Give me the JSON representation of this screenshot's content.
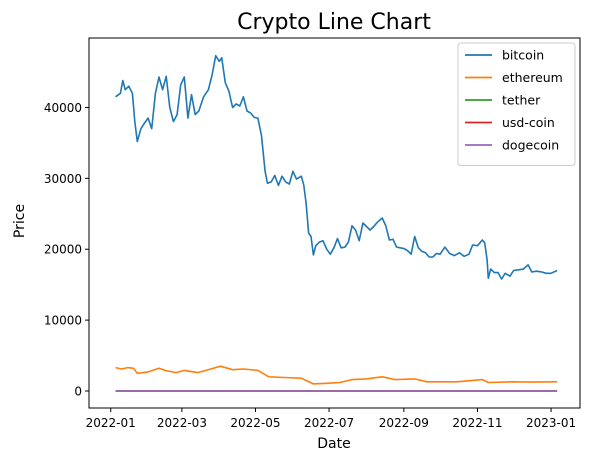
{
  "chart_data": {
    "type": "line",
    "title": "Crypto Line Chart",
    "xlabel": "Date",
    "ylabel": "Price",
    "x_ticks": [
      "2022-01",
      "2022-03",
      "2022-05",
      "2022-07",
      "2022-09",
      "2022-11",
      "2023-01"
    ],
    "y_ticks": [
      0,
      10000,
      20000,
      30000,
      40000
    ],
    "xlim": [
      "2021-12-14",
      "2023-01-25"
    ],
    "ylim": [
      -2400,
      49800
    ],
    "grid": false,
    "legend_position": "top-right",
    "series": [
      {
        "name": "bitcoin",
        "color": "#1f77b4",
        "points": [
          [
            "2022-01-05",
            41500
          ],
          [
            "2022-01-09",
            42000
          ],
          [
            "2022-01-11",
            43800
          ],
          [
            "2022-01-13",
            42500
          ],
          [
            "2022-01-16",
            43000
          ],
          [
            "2022-01-19",
            42000
          ],
          [
            "2022-01-21",
            38000
          ],
          [
            "2022-01-23",
            35200
          ],
          [
            "2022-01-26",
            37000
          ],
          [
            "2022-01-29",
            37800
          ],
          [
            "2022-02-01",
            38500
          ],
          [
            "2022-02-04",
            37000
          ],
          [
            "2022-02-07",
            42000
          ],
          [
            "2022-02-10",
            44300
          ],
          [
            "2022-02-13",
            42500
          ],
          [
            "2022-02-16",
            44400
          ],
          [
            "2022-02-19",
            40000
          ],
          [
            "2022-02-22",
            38000
          ],
          [
            "2022-02-25",
            39000
          ],
          [
            "2022-02-28",
            43200
          ],
          [
            "2022-03-03",
            44300
          ],
          [
            "2022-03-06",
            38500
          ],
          [
            "2022-03-09",
            41800
          ],
          [
            "2022-03-12",
            39000
          ],
          [
            "2022-03-15",
            39500
          ],
          [
            "2022-03-19",
            41500
          ],
          [
            "2022-03-23",
            42500
          ],
          [
            "2022-03-26",
            44600
          ],
          [
            "2022-03-29",
            47300
          ],
          [
            "2022-04-01",
            46500
          ],
          [
            "2022-04-03",
            47000
          ],
          [
            "2022-04-06",
            43500
          ],
          [
            "2022-04-09",
            42300
          ],
          [
            "2022-04-12",
            40000
          ],
          [
            "2022-04-15",
            40500
          ],
          [
            "2022-04-18",
            40200
          ],
          [
            "2022-04-21",
            41500
          ],
          [
            "2022-04-24",
            39500
          ],
          [
            "2022-04-27",
            39200
          ],
          [
            "2022-04-30",
            38600
          ],
          [
            "2022-05-03",
            38500
          ],
          [
            "2022-05-06",
            36000
          ],
          [
            "2022-05-09",
            31000
          ],
          [
            "2022-05-11",
            29300
          ],
          [
            "2022-05-14",
            29500
          ],
          [
            "2022-05-17",
            30400
          ],
          [
            "2022-05-20",
            29000
          ],
          [
            "2022-05-23",
            30300
          ],
          [
            "2022-05-26",
            29500
          ],
          [
            "2022-05-29",
            29200
          ],
          [
            "2022-06-01",
            31000
          ],
          [
            "2022-06-04",
            29900
          ],
          [
            "2022-06-08",
            30300
          ],
          [
            "2022-06-10",
            29100
          ],
          [
            "2022-06-12",
            26500
          ],
          [
            "2022-06-14",
            22300
          ],
          [
            "2022-06-16",
            21800
          ],
          [
            "2022-06-18",
            19200
          ],
          [
            "2022-06-20",
            20500
          ],
          [
            "2022-06-23",
            21000
          ],
          [
            "2022-06-26",
            21200
          ],
          [
            "2022-06-29",
            20000
          ],
          [
            "2022-07-02",
            19300
          ],
          [
            "2022-07-05",
            20200
          ],
          [
            "2022-07-08",
            21500
          ],
          [
            "2022-07-11",
            20200
          ],
          [
            "2022-07-14",
            20300
          ],
          [
            "2022-07-17",
            21000
          ],
          [
            "2022-07-20",
            23300
          ],
          [
            "2022-07-23",
            22700
          ],
          [
            "2022-07-26",
            21200
          ],
          [
            "2022-07-29",
            23700
          ],
          [
            "2022-08-01",
            23200
          ],
          [
            "2022-08-04",
            22700
          ],
          [
            "2022-08-07",
            23200
          ],
          [
            "2022-08-10",
            23800
          ],
          [
            "2022-08-14",
            24400
          ],
          [
            "2022-08-17",
            23300
          ],
          [
            "2022-08-20",
            21300
          ],
          [
            "2022-08-23",
            21400
          ],
          [
            "2022-08-26",
            20300
          ],
          [
            "2022-08-29",
            20200
          ],
          [
            "2022-09-01",
            20100
          ],
          [
            "2022-09-04",
            19800
          ],
          [
            "2022-09-07",
            19300
          ],
          [
            "2022-09-10",
            21800
          ],
          [
            "2022-09-13",
            20200
          ],
          [
            "2022-09-16",
            19700
          ],
          [
            "2022-09-19",
            19500
          ],
          [
            "2022-09-22",
            18900
          ],
          [
            "2022-09-25",
            18900
          ],
          [
            "2022-09-28",
            19400
          ],
          [
            "2022-10-01",
            19300
          ],
          [
            "2022-10-05",
            20300
          ],
          [
            "2022-10-09",
            19400
          ],
          [
            "2022-10-13",
            19100
          ],
          [
            "2022-10-17",
            19500
          ],
          [
            "2022-10-21",
            19000
          ],
          [
            "2022-10-25",
            19300
          ],
          [
            "2022-10-28",
            20600
          ],
          [
            "2022-11-01",
            20500
          ],
          [
            "2022-11-05",
            21300
          ],
          [
            "2022-11-07",
            20900
          ],
          [
            "2022-11-09",
            18500
          ],
          [
            "2022-11-10",
            15900
          ],
          [
            "2022-11-12",
            17200
          ],
          [
            "2022-11-15",
            16700
          ],
          [
            "2022-11-18",
            16700
          ],
          [
            "2022-11-21",
            15800
          ],
          [
            "2022-11-24",
            16600
          ],
          [
            "2022-11-28",
            16200
          ],
          [
            "2022-12-01",
            17000
          ],
          [
            "2022-12-05",
            17100
          ],
          [
            "2022-12-09",
            17200
          ],
          [
            "2022-12-13",
            17800
          ],
          [
            "2022-12-16",
            16800
          ],
          [
            "2022-12-20",
            16900
          ],
          [
            "2022-12-24",
            16800
          ],
          [
            "2022-12-28",
            16600
          ],
          [
            "2023-01-01",
            16600
          ],
          [
            "2023-01-06",
            17000
          ]
        ]
      },
      {
        "name": "ethereum",
        "color": "#ff7f0e",
        "points": [
          [
            "2022-01-05",
            3300
          ],
          [
            "2022-01-10",
            3100
          ],
          [
            "2022-01-15",
            3300
          ],
          [
            "2022-01-20",
            3200
          ],
          [
            "2022-01-23",
            2500
          ],
          [
            "2022-02-01",
            2700
          ],
          [
            "2022-02-10",
            3200
          ],
          [
            "2022-02-15",
            2900
          ],
          [
            "2022-02-24",
            2600
          ],
          [
            "2022-03-03",
            2900
          ],
          [
            "2022-03-14",
            2600
          ],
          [
            "2022-03-25",
            3100
          ],
          [
            "2022-04-02",
            3500
          ],
          [
            "2022-04-12",
            3000
          ],
          [
            "2022-04-21",
            3100
          ],
          [
            "2022-05-03",
            2900
          ],
          [
            "2022-05-12",
            2000
          ],
          [
            "2022-05-25",
            1900
          ],
          [
            "2022-06-08",
            1800
          ],
          [
            "2022-06-18",
            1000
          ],
          [
            "2022-07-01",
            1100
          ],
          [
            "2022-07-10",
            1200
          ],
          [
            "2022-07-20",
            1600
          ],
          [
            "2022-08-01",
            1700
          ],
          [
            "2022-08-14",
            2000
          ],
          [
            "2022-08-25",
            1600
          ],
          [
            "2022-09-10",
            1700
          ],
          [
            "2022-09-20",
            1300
          ],
          [
            "2022-10-15",
            1300
          ],
          [
            "2022-11-05",
            1600
          ],
          [
            "2022-11-10",
            1200
          ],
          [
            "2022-12-01",
            1300
          ],
          [
            "2022-12-15",
            1250
          ],
          [
            "2023-01-06",
            1300
          ]
        ]
      },
      {
        "name": "tether",
        "color": "#2ca02c",
        "points": [
          [
            "2022-01-05",
            1
          ],
          [
            "2023-01-06",
            1
          ]
        ]
      },
      {
        "name": "usd-coin",
        "color": "#d62728",
        "points": [
          [
            "2022-01-05",
            1
          ],
          [
            "2023-01-06",
            1
          ]
        ]
      },
      {
        "name": "dogecoin",
        "color": "#9467bd",
        "points": [
          [
            "2022-01-05",
            0.17
          ],
          [
            "2023-01-06",
            0.07
          ]
        ]
      }
    ]
  }
}
